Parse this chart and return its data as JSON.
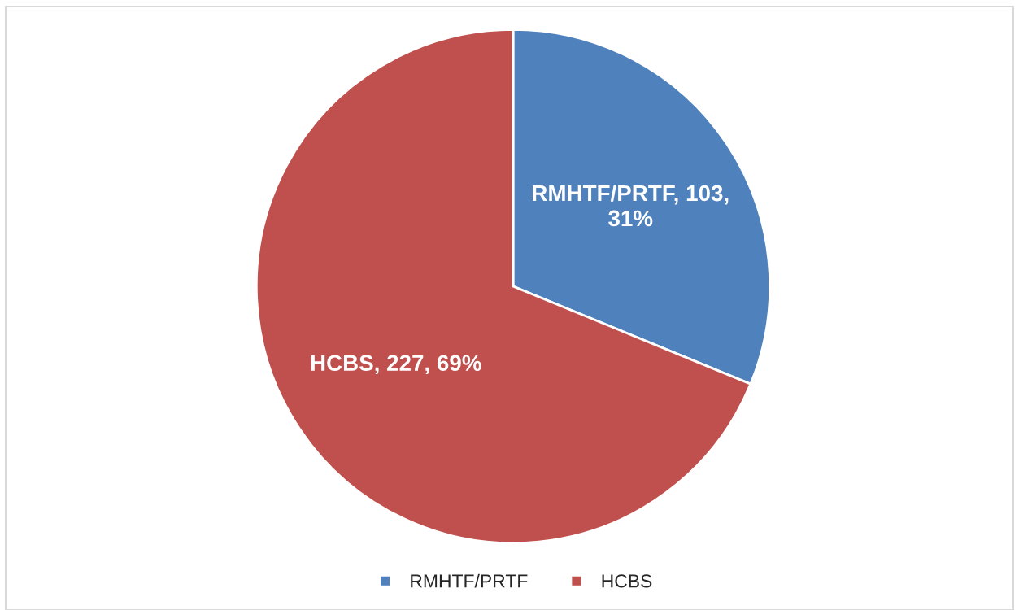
{
  "chart_data": {
    "type": "pie",
    "categories": [
      "RMHTF/PRTF",
      "HCBS"
    ],
    "values": [
      103,
      227
    ],
    "colors": [
      "#4f81bd",
      "#c0504d"
    ],
    "value_labels": [
      "RMHTF/PRTF, 103,\n31%",
      "HCBS, 227, 69%"
    ],
    "legend": "bottom"
  }
}
